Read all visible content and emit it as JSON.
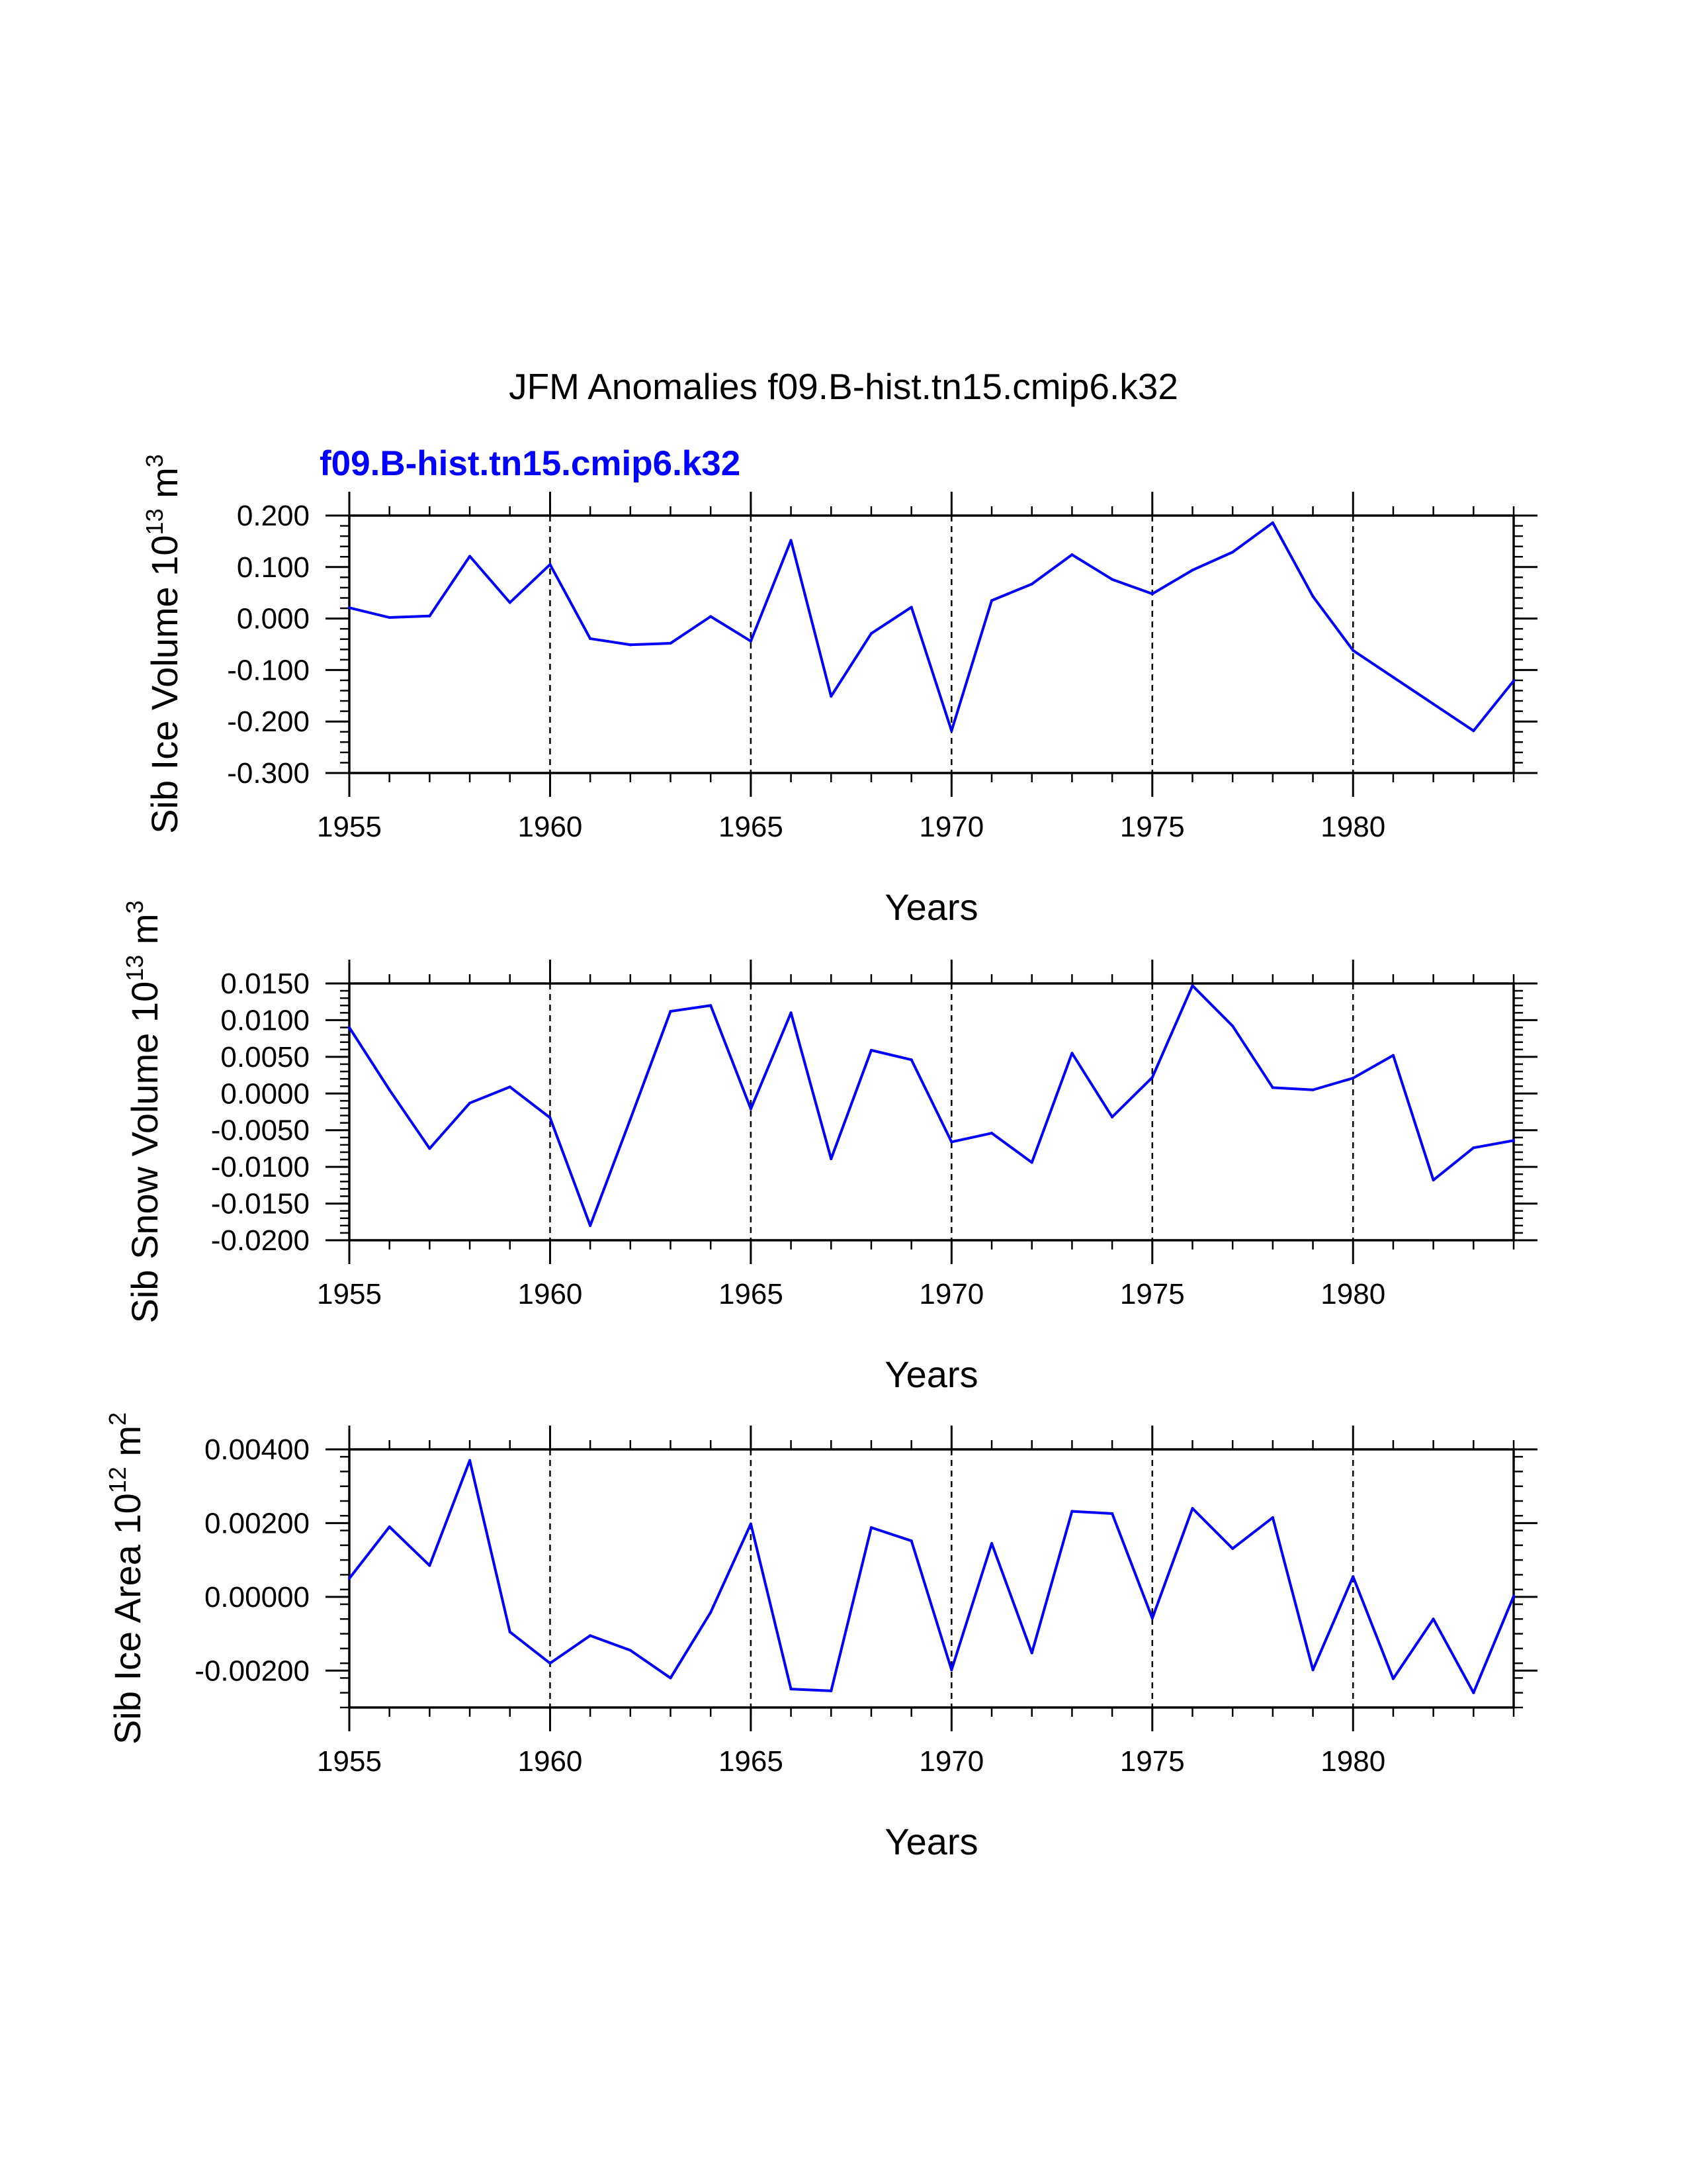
{
  "main_title": "JFM Anomalies f09.B-hist.tn15.cmip6.k32",
  "legend_label": "f09.B-hist.tn15.cmip6.k32",
  "colors": {
    "series": "#0000ff",
    "axis": "#000000",
    "grid": "#000000",
    "legend": "#0000ff"
  },
  "chart_data": [
    {
      "type": "line",
      "title": "",
      "xlabel": "Years",
      "ylabel_main": "Sib Ice Volume 10",
      "ylabel_exp": "13",
      "ylabel_unit": " m",
      "ylabel_unit_exp": "3",
      "xlim": [
        1955,
        1984
      ],
      "ylim": [
        -0.3,
        0.2
      ],
      "x_ticks": [
        1955,
        1960,
        1965,
        1970,
        1975,
        1980
      ],
      "x_tick_labels": [
        "1955",
        "1960",
        "1965",
        "1970",
        "1975",
        "1980"
      ],
      "y_ticks": [
        0.2,
        0.1,
        0.0,
        -0.1,
        -0.2,
        -0.3
      ],
      "y_tick_labels": [
        "0.200",
        "0.100",
        "0.000",
        "-0.100",
        "-0.200",
        "-0.300"
      ],
      "grid_x": [
        1960,
        1965,
        1970,
        1975,
        1980
      ],
      "series": [
        {
          "name": "f09.B-hist.tn15.cmip6.k32",
          "x": [
            1955,
            1956,
            1957,
            1958,
            1959,
            1960,
            1961,
            1962,
            1963,
            1964,
            1965,
            1966,
            1967,
            1968,
            1969,
            1970,
            1971,
            1972,
            1973,
            1974,
            1975,
            1976,
            1977,
            1978,
            1979,
            1980,
            1981,
            1982,
            1983,
            1984
          ],
          "values": [
            0.021,
            0.002,
            0.005,
            0.121,
            0.031,
            0.105,
            -0.039,
            -0.051,
            -0.048,
            0.004,
            -0.044,
            0.152,
            -0.151,
            -0.029,
            0.022,
            -0.218,
            0.035,
            0.067,
            0.124,
            0.076,
            0.048,
            0.094,
            0.129,
            0.186,
            0.043,
            -0.062,
            -0.114,
            -0.166,
            -0.218,
            -0.121
          ]
        }
      ]
    },
    {
      "type": "line",
      "title": "",
      "xlabel": "Years",
      "ylabel_main": "Sib Snow Volume 10",
      "ylabel_exp": "13",
      "ylabel_unit": " m",
      "ylabel_unit_exp": "3",
      "xlim": [
        1955,
        1984
      ],
      "ylim": [
        -0.02,
        0.015
      ],
      "x_ticks": [
        1955,
        1960,
        1965,
        1970,
        1975,
        1980
      ],
      "x_tick_labels": [
        "1955",
        "1960",
        "1965",
        "1970",
        "1975",
        "1980"
      ],
      "y_ticks": [
        0.015,
        0.01,
        0.005,
        0.0,
        -0.005,
        -0.01,
        -0.015,
        -0.02
      ],
      "y_tick_labels": [
        "0.0150",
        "0.0100",
        "0.0050",
        "0.0000",
        "-0.0050",
        "-0.0100",
        "-0.0150",
        "-0.0200"
      ],
      "grid_x": [
        1960,
        1965,
        1970,
        1975,
        1980
      ],
      "series": [
        {
          "name": "f09.B-hist.tn15.cmip6.k32",
          "x": [
            1955,
            1956,
            1957,
            1958,
            1959,
            1960,
            1961,
            1962,
            1963,
            1964,
            1965,
            1966,
            1967,
            1968,
            1969,
            1970,
            1971,
            1972,
            1973,
            1974,
            1975,
            1976,
            1977,
            1978,
            1979,
            1980,
            1981,
            1982,
            1983,
            1984
          ],
          "values": [
            0.009,
            0.0005,
            -0.0075,
            -0.0013,
            0.0009,
            -0.0033,
            -0.018,
            -0.0035,
            0.0112,
            0.012,
            -0.0021,
            0.011,
            -0.0089,
            0.0059,
            0.0046,
            -0.0066,
            -0.0054,
            -0.0094,
            0.0055,
            -0.0032,
            0.0022,
            0.0147,
            0.0092,
            0.0008,
            0.0005,
            0.0021,
            0.0052,
            -0.0118,
            -0.0074,
            -0.0064
          ]
        }
      ]
    },
    {
      "type": "line",
      "title": "",
      "xlabel": "Years",
      "ylabel_main": "Sib Ice Area 10",
      "ylabel_exp": "12",
      "ylabel_unit": " m",
      "ylabel_unit_exp": "2",
      "xlim": [
        1955,
        1984
      ],
      "ylim": [
        -0.003,
        0.004
      ],
      "x_ticks": [
        1955,
        1960,
        1965,
        1970,
        1975,
        1980
      ],
      "x_tick_labels": [
        "1955",
        "1960",
        "1965",
        "1970",
        "1975",
        "1980"
      ],
      "y_ticks": [
        0.004,
        0.002,
        0.0,
        -0.002
      ],
      "y_tick_labels": [
        "0.00400",
        "0.00200",
        "0.00000",
        "-0.00200"
      ],
      "grid_x": [
        1960,
        1965,
        1970,
        1975,
        1980
      ],
      "series": [
        {
          "name": "f09.B-hist.tn15.cmip6.k32",
          "x": [
            1955,
            1956,
            1957,
            1958,
            1959,
            1960,
            1961,
            1962,
            1963,
            1964,
            1965,
            1966,
            1967,
            1968,
            1969,
            1970,
            1971,
            1972,
            1973,
            1974,
            1975,
            1976,
            1977,
            1978,
            1979,
            1980,
            1981,
            1982,
            1983,
            1984
          ],
          "values": [
            0.0005,
            0.0019,
            0.00085,
            0.0037,
            -0.00095,
            -0.0018,
            -0.00105,
            -0.00145,
            -0.0022,
            -0.00042,
            0.00198,
            -0.0025,
            -0.00255,
            0.00188,
            0.00152,
            -0.00198,
            0.00145,
            -0.00152,
            0.00232,
            0.00226,
            -0.00058,
            0.0024,
            0.00131,
            0.00215,
            -0.00198,
            0.00055,
            -0.00222,
            -0.0006,
            -0.0026,
            2e-05
          ]
        }
      ]
    }
  ]
}
